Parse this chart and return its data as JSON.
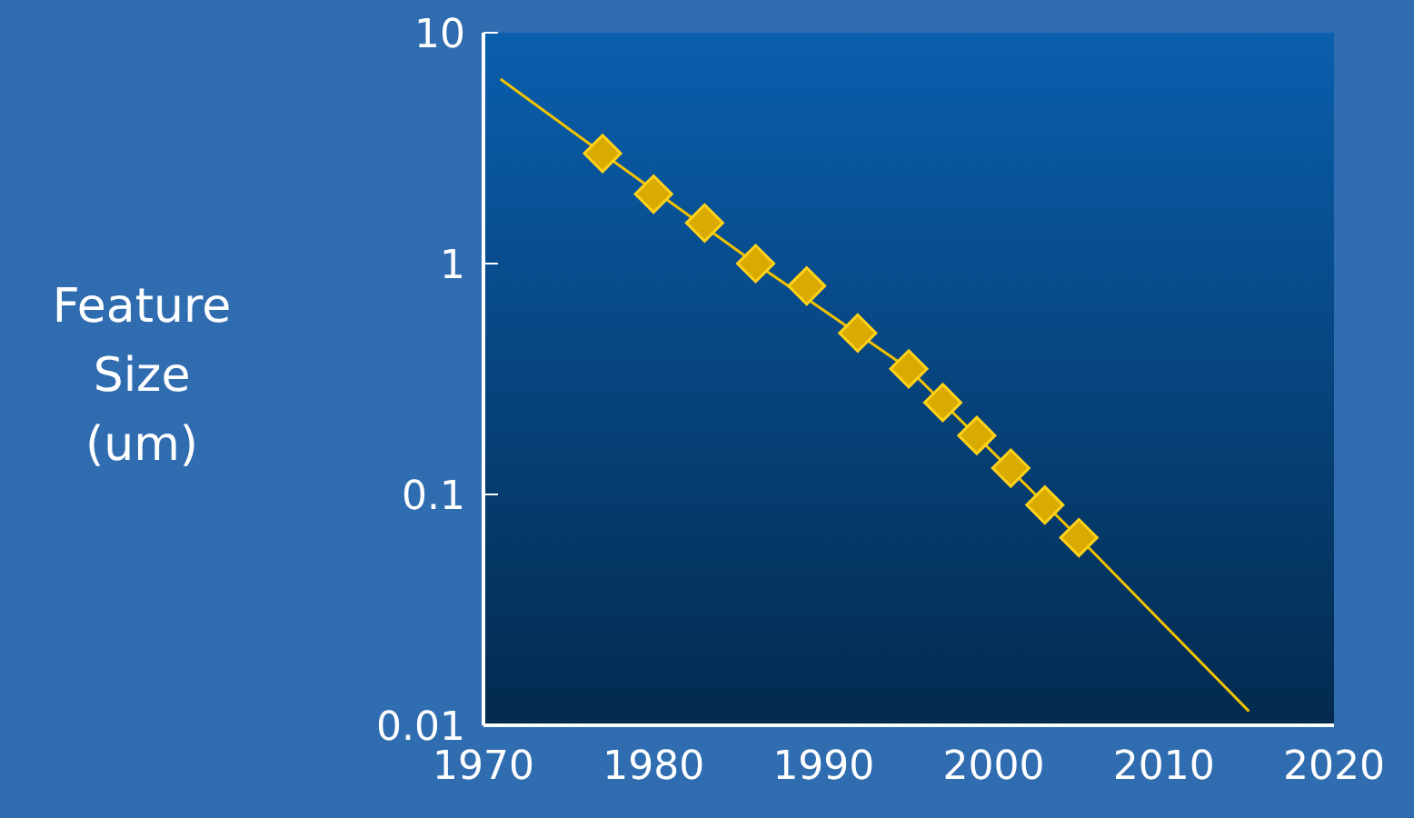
{
  "chart_data": {
    "type": "scatter",
    "ylabel": "Feature Size (um)",
    "log": "y",
    "xlim": [
      1970,
      2020
    ],
    "xticks": [
      1970,
      1980,
      1990,
      2000,
      2010,
      2020
    ],
    "ylim": [
      0.01,
      10
    ],
    "yticks": [
      0.01,
      0.1,
      1,
      10
    ],
    "grid": false,
    "marker": "diamond",
    "series": [
      {
        "type": "line",
        "color": "#f2c200",
        "marker": "none",
        "line_style": "solid",
        "x": [
          1971,
          1977,
          1986,
          1995,
          2005,
          2015
        ],
        "values": [
          6.3,
          3,
          1,
          0.35,
          0.065,
          0.0115
        ]
      },
      {
        "color": "#d9aa00",
        "x": [
          1977,
          1980,
          1983,
          1986,
          1989,
          1992,
          1995,
          1997,
          1999,
          2001,
          2003,
          2005
        ],
        "values": [
          3,
          2,
          1.5,
          1,
          0.8,
          0.5,
          0.35,
          0.25,
          0.18,
          0.13,
          0.09,
          0.065
        ]
      }
    ]
  }
}
